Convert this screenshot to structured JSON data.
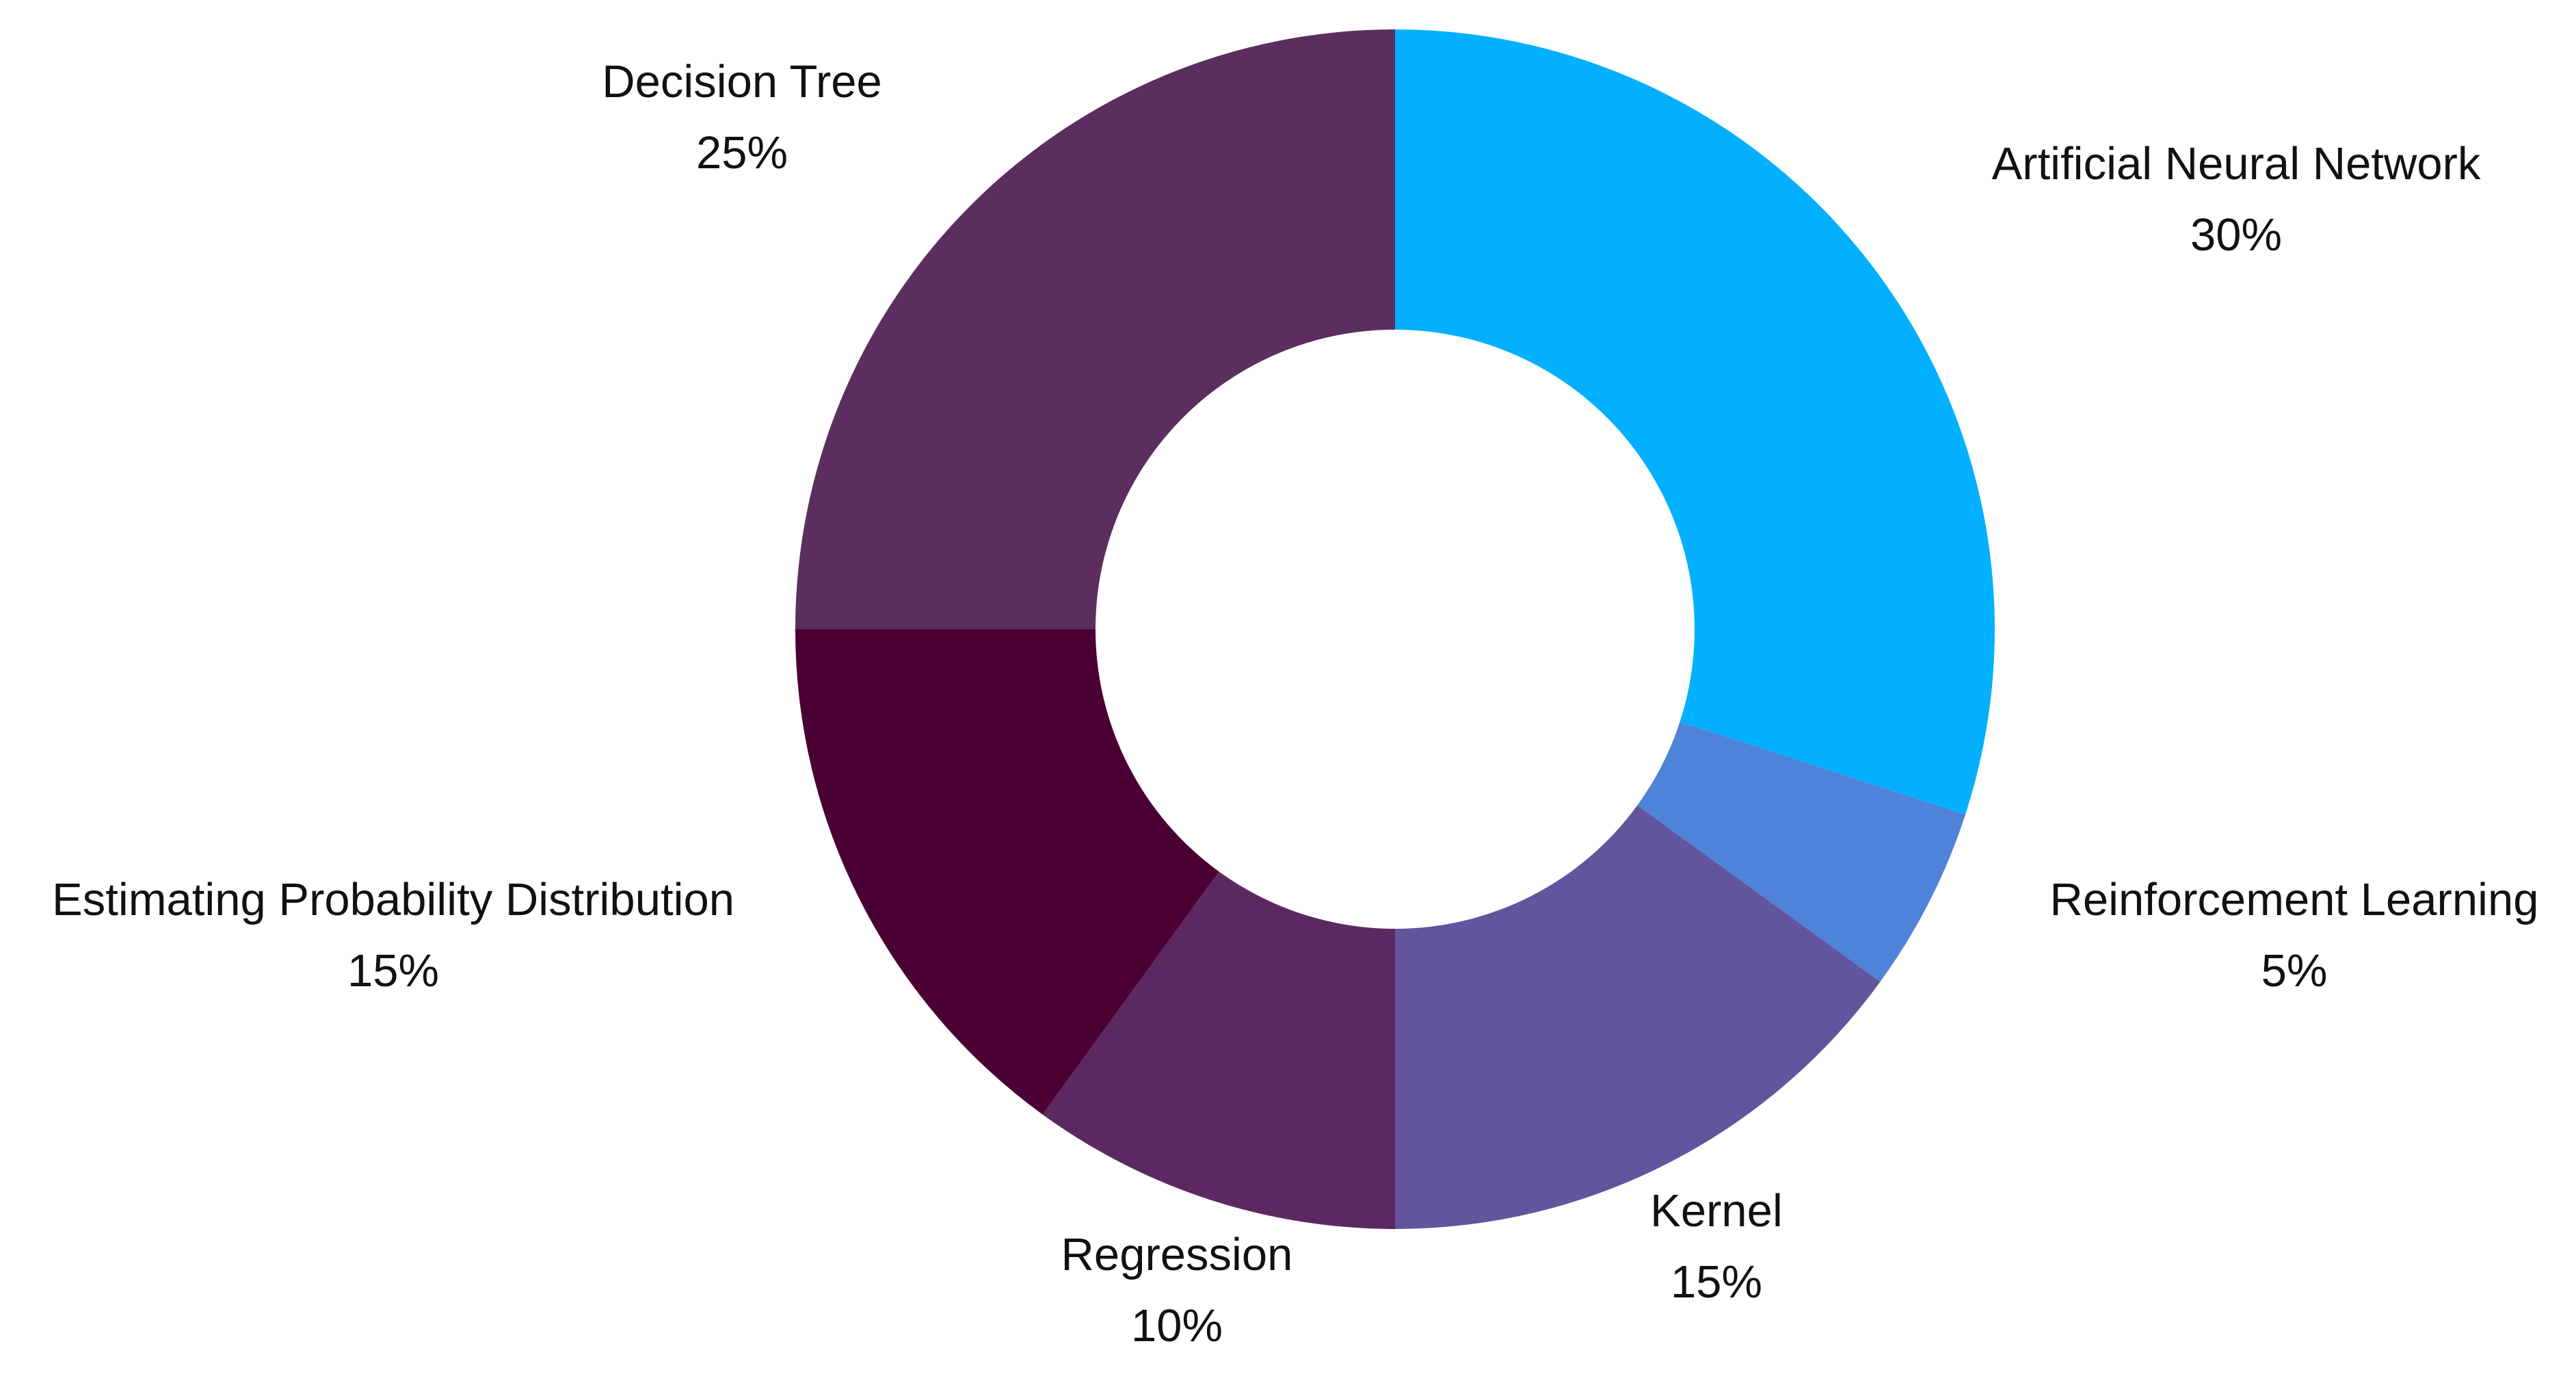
{
  "chart_data": {
    "type": "pie",
    "style": "donut",
    "title": "",
    "start_angle_deg": 0,
    "direction": "clockwise",
    "slices": [
      {
        "label": "Artificial Neural Network",
        "value": 30,
        "value_label": "30%",
        "color": "#03B0FF"
      },
      {
        "label": "Reinforcement Learning",
        "value": 5,
        "value_label": "5%",
        "color": "#4F82D9"
      },
      {
        "label": "Kernel",
        "value": 15,
        "value_label": "15%",
        "color": "#62559E"
      },
      {
        "label": "Regression",
        "value": 10,
        "value_label": "10%",
        "color": "#5C2862"
      },
      {
        "label": "Estimating Probability Distribution",
        "value": 15,
        "value_label": "15%",
        "color": "#4A0033"
      },
      {
        "label": "Decision Tree",
        "value": 25,
        "value_label": "25%",
        "color": "#5C2E60"
      }
    ]
  }
}
